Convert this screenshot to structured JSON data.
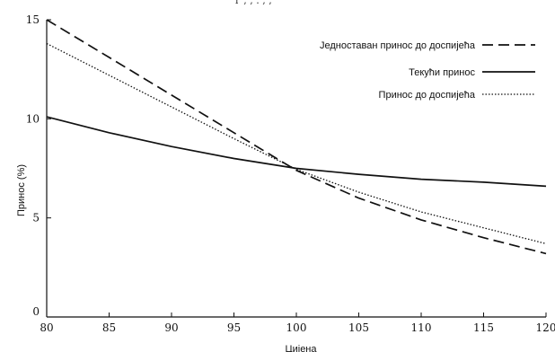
{
  "chart_data": {
    "type": "line",
    "title": "",
    "xlabel": "Цијена",
    "ylabel": "Принос (%)",
    "xlim": [
      80,
      120
    ],
    "ylim": [
      0,
      15
    ],
    "x_ticks": [
      80,
      85,
      90,
      95,
      100,
      105,
      110,
      115,
      120
    ],
    "y_ticks": [
      0,
      5,
      10,
      15
    ],
    "grid": false,
    "legend_position": "top-right",
    "series": [
      {
        "name": "Једноставан принос до доспијећа",
        "style": "dashed",
        "color": "#111111",
        "x": [
          80,
          85,
          90,
          95,
          100,
          105,
          110,
          115,
          120
        ],
        "y": [
          15.0,
          13.1,
          11.2,
          9.3,
          7.4,
          6.0,
          4.9,
          4.0,
          3.2
        ]
      },
      {
        "name": "Текући принос",
        "style": "solid",
        "color": "#111111",
        "x": [
          80,
          85,
          90,
          95,
          100,
          105,
          110,
          115,
          120
        ],
        "y": [
          10.1,
          9.3,
          8.6,
          8.0,
          7.5,
          7.2,
          6.95,
          6.8,
          6.6
        ]
      },
      {
        "name": "Принос до доспијећа",
        "style": "dotted",
        "color": "#111111",
        "x": [
          80,
          85,
          90,
          95,
          100,
          105,
          110,
          115,
          120
        ],
        "y": [
          13.8,
          12.2,
          10.6,
          9.0,
          7.45,
          6.3,
          5.3,
          4.5,
          3.7
        ]
      }
    ]
  }
}
